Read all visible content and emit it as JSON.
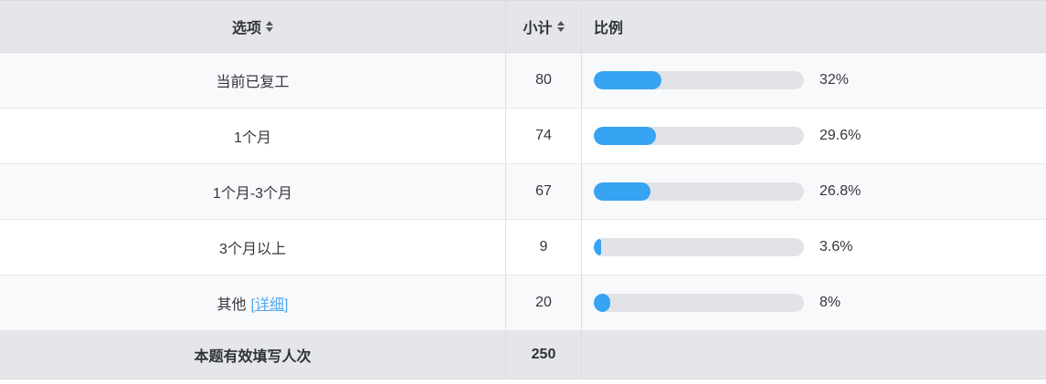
{
  "table": {
    "headers": {
      "option": "选项",
      "count": "小计",
      "ratio": "比例"
    },
    "rows": [
      {
        "option": "当前已复工",
        "detail_link": "",
        "count": "80",
        "percent_label": "32%",
        "percent_value": 32
      },
      {
        "option": "1个月",
        "detail_link": "",
        "count": "74",
        "percent_label": "29.6%",
        "percent_value": 29.6
      },
      {
        "option": "1个月-3个月",
        "detail_link": "",
        "count": "67",
        "percent_label": "26.8%",
        "percent_value": 26.8
      },
      {
        "option": "3个月以上",
        "detail_link": "",
        "count": "9",
        "percent_label": "3.6%",
        "percent_value": 3.6
      },
      {
        "option": "其他",
        "detail_link": "[详细]",
        "count": "20",
        "percent_label": "8%",
        "percent_value": 8
      }
    ],
    "footer": {
      "label": "本题有效填写人次",
      "total": "250"
    }
  },
  "colors": {
    "bar_fill": "#36a3f3",
    "bar_track": "#e1e3e6",
    "header_bg": "#e4e6e9",
    "stripe_bg": "#f8f9fb",
    "link": "#54a8f0"
  }
}
